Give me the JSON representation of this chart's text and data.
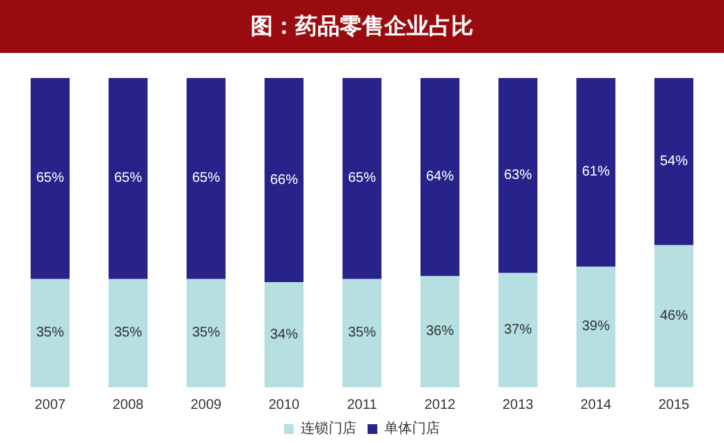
{
  "chart_data": {
    "type": "bar",
    "title": "图：药品零售企业占比",
    "stacked": true,
    "categories": [
      "2007",
      "2008",
      "2009",
      "2010",
      "2011",
      "2012",
      "2013",
      "2014",
      "2015"
    ],
    "series": [
      {
        "name": "连锁门店",
        "color": "#b5dfe0",
        "values": [
          35,
          35,
          35,
          34,
          35,
          36,
          37,
          39,
          46
        ],
        "value_labels": [
          "35%",
          "35%",
          "35%",
          "34%",
          "35%",
          "36%",
          "37%",
          "39%",
          "46%"
        ]
      },
      {
        "name": "单体门店",
        "color": "#27238b",
        "values": [
          65,
          65,
          65,
          66,
          65,
          64,
          63,
          61,
          54
        ],
        "value_labels": [
          "65%",
          "65%",
          "65%",
          "66%",
          "65%",
          "64%",
          "63%",
          "61%",
          "54%"
        ]
      }
    ],
    "ylim": [
      0,
      100
    ],
    "tick_labels": "x",
    "legend": "bottom"
  }
}
